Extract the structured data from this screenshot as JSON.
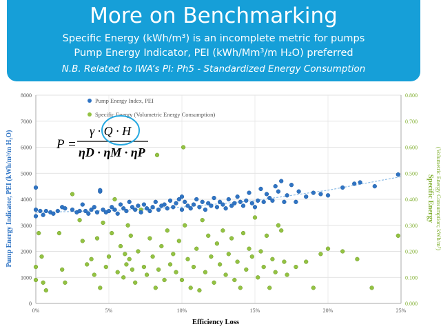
{
  "slide": {
    "title": "More on Benchmarking",
    "line1": "Specific Energy (kWh/m³) is an incomplete metric for pumps",
    "line2": "Pump Energy Indicator, PEI (kWh/Mm³/m H₂O) preferred",
    "line3": "N.B. Related to IWA’s PI:  Ph5 - Standardized Energy Consumption"
  },
  "formula": {
    "lhs": "P =",
    "numerator": "γ · Q · H",
    "denominator": "ηD · ηM · ηP"
  },
  "colors": {
    "banner": "#169fd8",
    "pei": "#2f74c4",
    "specific_energy": "#93c242",
    "trend": "#8fbde6"
  },
  "chart_data": {
    "type": "scatter",
    "xlabel": "Efficiency Loss",
    "ylabel": "Pump Energy Indicator, PEI (kWh/m³/m H₂O)",
    "ylabel_right": "Specific Energy",
    "ylabel_right_sub": "(Volumetric Energy Consumption; kWh/m³)",
    "x_ticks": [
      "0%",
      "5%",
      "10%",
      "15%",
      "20%",
      "25%"
    ],
    "y_ticks": [
      "0",
      "1000",
      "2000",
      "3000",
      "4000",
      "5000",
      "6000",
      "7000",
      "8000"
    ],
    "y2_ticks": [
      "0.000",
      "0.100",
      "0.200",
      "0.300",
      "0.400",
      "0.500",
      "0.600",
      "0.700",
      "0.800"
    ],
    "xlim": [
      0,
      0.25
    ],
    "ylim": [
      0,
      8000
    ],
    "y2lim": [
      0,
      0.8
    ],
    "grid": true,
    "legend_position": "top-left",
    "trendline": [
      [
        0,
        3500
      ],
      [
        0.05,
        3560
      ],
      [
        0.1,
        3700
      ],
      [
        0.15,
        3950
      ],
      [
        0.2,
        4350
      ],
      [
        0.25,
        4870
      ]
    ],
    "series": [
      {
        "name": "Pump Energy Index, PEI",
        "axis": "left",
        "points": [
          [
            0.0,
            3350
          ],
          [
            0.0,
            3600
          ],
          [
            0.0,
            4450
          ],
          [
            0.003,
            3550
          ],
          [
            0.005,
            3400
          ],
          [
            0.007,
            3550
          ],
          [
            0.01,
            3500
          ],
          [
            0.012,
            3450
          ],
          [
            0.015,
            3550
          ],
          [
            0.018,
            3700
          ],
          [
            0.02,
            3650
          ],
          [
            0.025,
            3600
          ],
          [
            0.028,
            3500
          ],
          [
            0.03,
            3550
          ],
          [
            0.032,
            3800
          ],
          [
            0.034,
            3550
          ],
          [
            0.036,
            3450
          ],
          [
            0.038,
            3600
          ],
          [
            0.04,
            3700
          ],
          [
            0.042,
            3500
          ],
          [
            0.044,
            4300
          ],
          [
            0.044,
            4350
          ],
          [
            0.046,
            3600
          ],
          [
            0.048,
            3500
          ],
          [
            0.05,
            3550
          ],
          [
            0.052,
            3700
          ],
          [
            0.054,
            3600
          ],
          [
            0.056,
            3450
          ],
          [
            0.058,
            3800
          ],
          [
            0.06,
            3650
          ],
          [
            0.062,
            3550
          ],
          [
            0.064,
            3900
          ],
          [
            0.066,
            3700
          ],
          [
            0.068,
            3600
          ],
          [
            0.07,
            3750
          ],
          [
            0.072,
            3500
          ],
          [
            0.074,
            3800
          ],
          [
            0.076,
            3650
          ],
          [
            0.078,
            3550
          ],
          [
            0.08,
            3700
          ],
          [
            0.082,
            3900
          ],
          [
            0.084,
            3600
          ],
          [
            0.086,
            3750
          ],
          [
            0.088,
            3800
          ],
          [
            0.09,
            3650
          ],
          [
            0.092,
            3950
          ],
          [
            0.094,
            3700
          ],
          [
            0.096,
            3850
          ],
          [
            0.098,
            4000
          ],
          [
            0.1,
            3600
          ],
          [
            0.1,
            4100
          ],
          [
            0.102,
            3900
          ],
          [
            0.104,
            3750
          ],
          [
            0.106,
            3650
          ],
          [
            0.108,
            3800
          ],
          [
            0.11,
            4000
          ],
          [
            0.112,
            3700
          ],
          [
            0.114,
            3900
          ],
          [
            0.116,
            3600
          ],
          [
            0.118,
            3850
          ],
          [
            0.12,
            3750
          ],
          [
            0.122,
            4050
          ],
          [
            0.124,
            3700
          ],
          [
            0.126,
            3900
          ],
          [
            0.128,
            3800
          ],
          [
            0.13,
            3650
          ],
          [
            0.132,
            4000
          ],
          [
            0.134,
            3750
          ],
          [
            0.136,
            3850
          ],
          [
            0.138,
            4100
          ],
          [
            0.14,
            3900
          ],
          [
            0.142,
            3750
          ],
          [
            0.144,
            3950
          ],
          [
            0.146,
            4250
          ],
          [
            0.148,
            3850
          ],
          [
            0.15,
            3700
          ],
          [
            0.152,
            3950
          ],
          [
            0.154,
            4400
          ],
          [
            0.156,
            3900
          ],
          [
            0.158,
            4200
          ],
          [
            0.16,
            4050
          ],
          [
            0.162,
            3950
          ],
          [
            0.164,
            4500
          ],
          [
            0.166,
            4300
          ],
          [
            0.168,
            4700
          ],
          [
            0.17,
            3900
          ],
          [
            0.172,
            4150
          ],
          [
            0.175,
            4550
          ],
          [
            0.178,
            3900
          ],
          [
            0.18,
            4300
          ],
          [
            0.185,
            4100
          ],
          [
            0.19,
            4250
          ],
          [
            0.195,
            4200
          ],
          [
            0.2,
            4150
          ],
          [
            0.21,
            4450
          ],
          [
            0.218,
            4600
          ],
          [
            0.222,
            4650
          ],
          [
            0.232,
            4500
          ],
          [
            0.248,
            4950
          ]
        ]
      },
      {
        "name": "Specific Energy (Volumetric Energy Consumption)",
        "axis": "right",
        "points": [
          [
            0.0,
            0.14
          ],
          [
            0.0,
            0.09
          ],
          [
            0.002,
            0.27
          ],
          [
            0.004,
            0.18
          ],
          [
            0.005,
            0.08
          ],
          [
            0.007,
            0.05
          ],
          [
            0.016,
            0.27
          ],
          [
            0.018,
            0.13
          ],
          [
            0.02,
            0.08
          ],
          [
            0.025,
            0.42
          ],
          [
            0.03,
            0.32
          ],
          [
            0.032,
            0.24
          ],
          [
            0.035,
            0.15
          ],
          [
            0.038,
            0.17
          ],
          [
            0.04,
            0.11
          ],
          [
            0.042,
            0.25
          ],
          [
            0.044,
            0.06
          ],
          [
            0.046,
            0.31
          ],
          [
            0.048,
            0.14
          ],
          [
            0.05,
            0.18
          ],
          [
            0.052,
            0.27
          ],
          [
            0.054,
            0.4
          ],
          [
            0.056,
            0.12
          ],
          [
            0.058,
            0.22
          ],
          [
            0.06,
            0.1
          ],
          [
            0.061,
            0.19
          ],
          [
            0.062,
            0.15
          ],
          [
            0.063,
            0.3
          ],
          [
            0.064,
            0.17
          ],
          [
            0.065,
            0.26
          ],
          [
            0.066,
            0.13
          ],
          [
            0.068,
            0.08
          ],
          [
            0.07,
            0.2
          ],
          [
            0.072,
            0.36
          ],
          [
            0.074,
            0.14
          ],
          [
            0.076,
            0.11
          ],
          [
            0.078,
            0.25
          ],
          [
            0.08,
            0.18
          ],
          [
            0.082,
            0.06
          ],
          [
            0.083,
            0.57
          ],
          [
            0.084,
            0.13
          ],
          [
            0.086,
            0.22
          ],
          [
            0.088,
            0.09
          ],
          [
            0.09,
            0.28
          ],
          [
            0.092,
            0.15
          ],
          [
            0.094,
            0.19
          ],
          [
            0.096,
            0.12
          ],
          [
            0.098,
            0.24
          ],
          [
            0.1,
            0.09
          ],
          [
            0.101,
            0.6
          ],
          [
            0.102,
            0.3
          ],
          [
            0.104,
            0.17
          ],
          [
            0.106,
            0.06
          ],
          [
            0.108,
            0.14
          ],
          [
            0.11,
            0.21
          ],
          [
            0.112,
            0.05
          ],
          [
            0.114,
            0.32
          ],
          [
            0.116,
            0.12
          ],
          [
            0.118,
            0.26
          ],
          [
            0.12,
            0.18
          ],
          [
            0.122,
            0.08
          ],
          [
            0.124,
            0.23
          ],
          [
            0.126,
            0.15
          ],
          [
            0.128,
            0.28
          ],
          [
            0.13,
            0.11
          ],
          [
            0.132,
            0.19
          ],
          [
            0.134,
            0.25
          ],
          [
            0.136,
            0.09
          ],
          [
            0.138,
            0.16
          ],
          [
            0.14,
            0.06
          ],
          [
            0.142,
            0.27
          ],
          [
            0.144,
            0.13
          ],
          [
            0.146,
            0.21
          ],
          [
            0.148,
            0.18
          ],
          [
            0.15,
            0.33
          ],
          [
            0.152,
            0.1
          ],
          [
            0.154,
            0.2
          ],
          [
            0.156,
            0.14
          ],
          [
            0.158,
            0.26
          ],
          [
            0.16,
            0.06
          ],
          [
            0.162,
            0.17
          ],
          [
            0.164,
            0.12
          ],
          [
            0.166,
            0.3
          ],
          [
            0.168,
            0.28
          ],
          [
            0.17,
            0.16
          ],
          [
            0.172,
            0.11
          ],
          [
            0.178,
            0.14
          ],
          [
            0.185,
            0.16
          ],
          [
            0.19,
            0.06
          ],
          [
            0.195,
            0.19
          ],
          [
            0.2,
            0.21
          ],
          [
            0.21,
            0.2
          ],
          [
            0.22,
            0.17
          ],
          [
            0.23,
            0.06
          ],
          [
            0.248,
            0.26
          ]
        ]
      }
    ]
  }
}
